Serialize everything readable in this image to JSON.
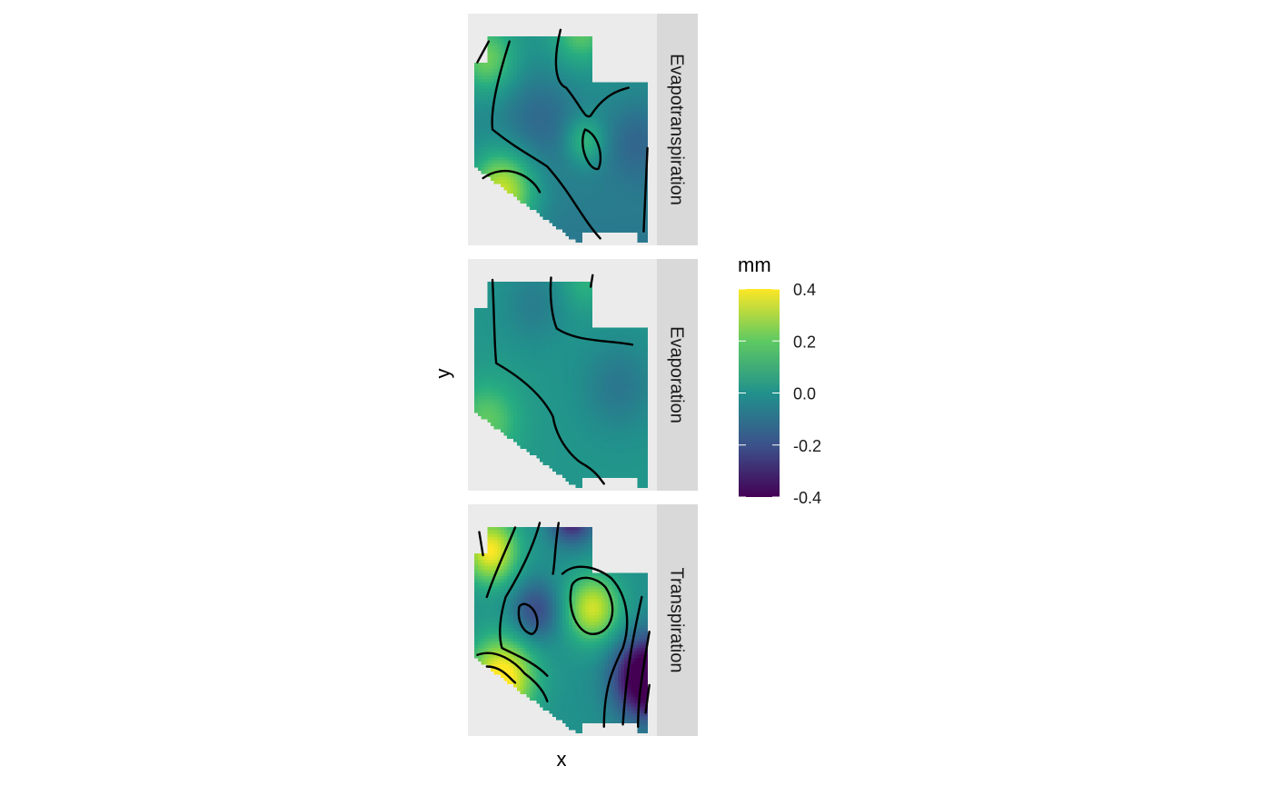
{
  "chart_data": {
    "type": "heatmap",
    "title": "",
    "xlabel": "x",
    "ylabel": "y",
    "facets": [
      {
        "label": "Evapotranspiration",
        "z_range_approx": [
          -0.15,
          0.4
        ]
      },
      {
        "label": "Evaporation",
        "z_range_approx": [
          -0.1,
          0.3
        ]
      },
      {
        "label": "Transpiration",
        "z_range_approx": [
          -0.4,
          0.4
        ]
      }
    ],
    "legend": {
      "title": "mm",
      "position": "right",
      "limits": [
        -0.4,
        0.4
      ],
      "ticks": [
        "0.4",
        "0.2",
        "0.0",
        "-0.2",
        "-0.4"
      ],
      "palette": "viridis",
      "colors": [
        "#440154",
        "#3b528b",
        "#21918c",
        "#5ec962",
        "#fde725"
      ]
    },
    "contours": true,
    "grid": false,
    "axis_ticks_shown": false
  },
  "colors": {
    "panel_background": "#ebebeb",
    "strip_background": "#d9d9d9"
  }
}
